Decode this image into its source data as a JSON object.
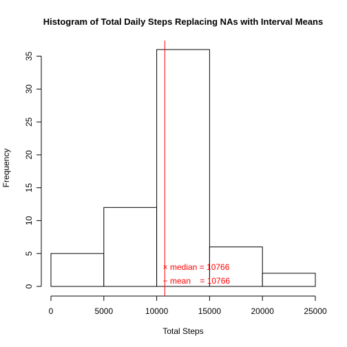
{
  "chart_data": {
    "type": "bar",
    "title": "Histogram of Total Daily Steps Replacing NAs with Interval Means",
    "xlabel": "Total Steps",
    "ylabel": "Frequency",
    "xlim": [
      0,
      25000
    ],
    "ylim": [
      0,
      36
    ],
    "x_ticks": [
      0,
      5000,
      10000,
      15000,
      20000,
      25000
    ],
    "y_ticks": [
      0,
      5,
      10,
      15,
      20,
      25,
      30,
      35
    ],
    "bins": [
      {
        "from": 0,
        "to": 5000,
        "count": 5
      },
      {
        "from": 5000,
        "to": 10000,
        "count": 12
      },
      {
        "from": 10000,
        "to": 15000,
        "count": 36
      },
      {
        "from": 15000,
        "to": 20000,
        "count": 6
      },
      {
        "from": 20000,
        "to": 25000,
        "count": 2
      }
    ],
    "reference_line": {
      "x": 10766,
      "color": "#ff0000"
    },
    "legend": [
      {
        "symbol": "×",
        "name": "median",
        "label": "median = 10766"
      },
      {
        "symbol": "−",
        "name": "mean",
        "label": "mean    = 10766"
      }
    ],
    "legend_color": "#ff0000",
    "grid": false
  }
}
